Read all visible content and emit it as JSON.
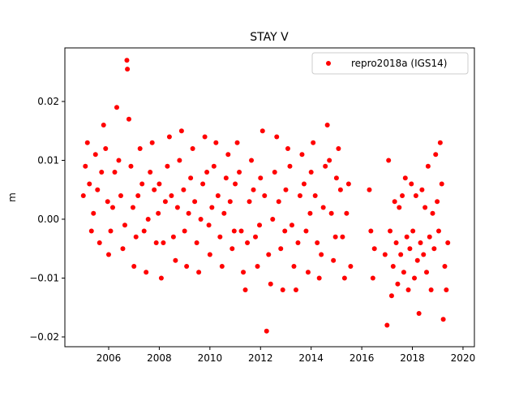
{
  "chart_data": {
    "type": "scatter",
    "title": "STAY V",
    "ylabel": "m",
    "series": [
      {
        "name": "repro2018a (IGS14)",
        "color": "#ff0000",
        "x": [
          2005.0,
          2005.08,
          2005.16,
          2005.24,
          2005.32,
          2005.4,
          2005.48,
          2005.56,
          2005.64,
          2005.72,
          2005.8,
          2005.88,
          2005.96,
          2006.0,
          2006.08,
          2006.16,
          2006.24,
          2006.32,
          2006.4,
          2006.48,
          2006.56,
          2006.64,
          2006.72,
          2006.74,
          2006.8,
          2006.88,
          2006.96,
          2007.0,
          2007.08,
          2007.16,
          2007.24,
          2007.32,
          2007.4,
          2007.48,
          2007.56,
          2007.64,
          2007.72,
          2007.8,
          2007.88,
          2007.96,
          2008.0,
          2008.08,
          2008.16,
          2008.24,
          2008.32,
          2008.4,
          2008.48,
          2008.56,
          2008.64,
          2008.72,
          2008.8,
          2008.88,
          2008.96,
          2009.0,
          2009.08,
          2009.16,
          2009.24,
          2009.32,
          2009.4,
          2009.48,
          2009.56,
          2009.64,
          2009.72,
          2009.8,
          2009.88,
          2009.96,
          2010.0,
          2010.08,
          2010.16,
          2010.24,
          2010.32,
          2010.4,
          2010.48,
          2010.56,
          2010.64,
          2010.72,
          2010.8,
          2010.88,
          2010.96,
          2011.0,
          2011.08,
          2011.16,
          2011.24,
          2011.32,
          2011.4,
          2011.48,
          2011.56,
          2011.64,
          2011.72,
          2011.8,
          2011.88,
          2011.96,
          2012.0,
          2012.08,
          2012.16,
          2012.24,
          2012.32,
          2012.4,
          2012.48,
          2012.56,
          2012.64,
          2012.72,
          2012.8,
          2012.88,
          2012.96,
          2013.0,
          2013.08,
          2013.16,
          2013.24,
          2013.32,
          2013.4,
          2013.48,
          2013.56,
          2013.64,
          2013.72,
          2013.8,
          2013.88,
          2013.96,
          2014.0,
          2014.08,
          2014.16,
          2014.24,
          2014.32,
          2014.4,
          2014.48,
          2014.56,
          2014.64,
          2014.72,
          2014.8,
          2014.88,
          2014.96,
          2015.0,
          2015.08,
          2015.16,
          2015.24,
          2015.32,
          2015.4,
          2015.48,
          2015.56,
          2016.3,
          2016.36,
          2016.44,
          2016.5,
          2016.92,
          2017.0,
          2017.06,
          2017.12,
          2017.18,
          2017.24,
          2017.3,
          2017.36,
          2017.42,
          2017.48,
          2017.54,
          2017.6,
          2017.66,
          2017.72,
          2017.78,
          2017.84,
          2017.9,
          2017.96,
          2018.02,
          2018.08,
          2018.14,
          2018.2,
          2018.26,
          2018.32,
          2018.38,
          2018.44,
          2018.5,
          2018.56,
          2018.62,
          2018.68,
          2018.74,
          2018.8,
          2018.86,
          2018.92,
          2018.98,
          2019.04,
          2019.1,
          2019.16,
          2019.22,
          2019.28,
          2019.34,
          2019.4
        ],
        "values": [
          0.004,
          0.009,
          0.013,
          0.006,
          -0.002,
          0.001,
          0.011,
          0.005,
          -0.004,
          0.008,
          0.016,
          0.012,
          0.003,
          -0.006,
          -0.002,
          0.002,
          0.008,
          0.019,
          0.01,
          0.004,
          -0.005,
          -0.001,
          0.027,
          0.0255,
          0.017,
          0.009,
          0.002,
          -0.008,
          -0.003,
          0.004,
          0.012,
          0.006,
          -0.002,
          -0.009,
          0.0,
          0.008,
          0.013,
          0.005,
          -0.004,
          0.001,
          0.006,
          -0.01,
          -0.004,
          0.003,
          0.009,
          0.014,
          0.004,
          -0.003,
          -0.007,
          0.002,
          0.01,
          0.015,
          0.005,
          -0.002,
          -0.008,
          0.001,
          0.007,
          0.012,
          0.003,
          -0.004,
          -0.009,
          0.0,
          0.006,
          0.014,
          0.008,
          -0.001,
          -0.006,
          0.002,
          0.009,
          0.013,
          0.004,
          -0.003,
          -0.008,
          0.001,
          0.007,
          0.011,
          0.003,
          -0.005,
          -0.002,
          0.006,
          0.013,
          0.008,
          -0.002,
          -0.009,
          -0.012,
          -0.004,
          0.003,
          0.01,
          0.005,
          -0.003,
          -0.008,
          -0.001,
          0.007,
          0.015,
          0.004,
          -0.019,
          -0.006,
          -0.011,
          0.0,
          0.008,
          0.014,
          0.003,
          -0.005,
          -0.012,
          -0.002,
          0.005,
          0.012,
          0.009,
          -0.001,
          -0.008,
          -0.012,
          -0.004,
          0.004,
          0.011,
          0.006,
          -0.002,
          -0.009,
          0.001,
          0.008,
          0.013,
          0.004,
          -0.004,
          -0.01,
          -0.006,
          0.002,
          0.009,
          0.016,
          0.01,
          0.001,
          -0.007,
          -0.003,
          0.007,
          0.012,
          0.005,
          -0.003,
          -0.01,
          0.001,
          0.006,
          -0.008,
          0.005,
          -0.002,
          -0.01,
          -0.005,
          -0.006,
          -0.018,
          0.01,
          -0.002,
          -0.013,
          -0.008,
          0.003,
          -0.004,
          -0.011,
          0.002,
          -0.006,
          0.004,
          -0.009,
          0.007,
          -0.003,
          -0.012,
          -0.005,
          0.006,
          -0.002,
          -0.01,
          0.004,
          -0.007,
          -0.016,
          -0.004,
          0.005,
          -0.006,
          0.002,
          -0.009,
          0.009,
          -0.003,
          -0.012,
          0.001,
          -0.005,
          0.011,
          0.003,
          -0.002,
          0.013,
          0.006,
          -0.017,
          -0.008,
          -0.012,
          -0.004
        ]
      }
    ],
    "xlim": [
      2004.27,
      2020.45
    ],
    "ylim": [
      -0.02166,
      0.0291
    ],
    "xticks": [
      2006,
      2008,
      2010,
      2012,
      2014,
      2016,
      2018,
      2020
    ],
    "yticks": [
      {
        "value": -0.02,
        "label": "−0.02"
      },
      {
        "value": -0.01,
        "label": "−0.01"
      },
      {
        "value": 0,
        "label": "0.00"
      },
      0.01,
      0.02
    ],
    "grid": false,
    "legend": "upper right"
  }
}
